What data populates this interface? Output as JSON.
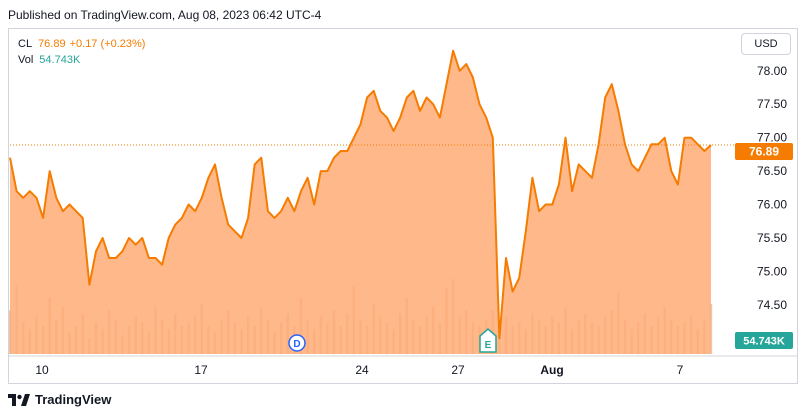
{
  "header": {
    "published": "Published on TradingView.com, Aug 08, 2023 06:42 UTC-4"
  },
  "legend": {
    "symbol": "CL",
    "price": "76.89",
    "change": "+0.17 (+0.23%)",
    "vol_label": "Vol",
    "vol_value": "54.743K"
  },
  "currency": "USD",
  "price_tag": "76.89",
  "volume_tag": "54.743K",
  "footer": {
    "brand": "TradingView"
  },
  "colors": {
    "line": "#f57c00",
    "fill": "#ffab76",
    "volume": "#e8c8b4",
    "teal": "#26a69a",
    "dividend": "#2962ff"
  },
  "chart_data": {
    "type": "area",
    "ylim": [
      73.75,
      78.55
    ],
    "y_ticks": [
      74.5,
      75.0,
      75.5,
      76.0,
      76.5,
      77.0,
      77.5,
      78.0
    ],
    "y_tick_labels": [
      "74.50",
      "75.00",
      "75.50",
      "76.00",
      "76.50",
      "77.00",
      "77.50",
      "78.00"
    ],
    "x_tick_labels": [
      {
        "label": "10",
        "bold": false
      },
      {
        "label": "17",
        "bold": false
      },
      {
        "label": "24",
        "bold": false
      },
      {
        "label": "27",
        "bold": false
      },
      {
        "label": "Aug",
        "bold": true
      },
      {
        "label": "7",
        "bold": false
      }
    ],
    "last_price": 76.89,
    "events": [
      {
        "label": "D",
        "type": "dividend"
      },
      {
        "label": "E",
        "type": "earnings"
      }
    ],
    "series": [
      {
        "values": [
          76.7,
          76.2,
          76.1,
          76.2,
          76.1,
          75.8,
          76.5,
          76.1,
          75.9,
          76.0,
          75.9,
          75.8,
          74.8,
          75.3,
          75.5,
          75.2,
          75.2,
          75.3,
          75.5,
          75.4,
          75.5,
          75.2,
          75.2,
          75.1,
          75.5,
          75.7,
          75.8,
          76.0,
          75.9,
          76.1,
          76.4,
          76.6,
          76.1,
          75.7,
          75.6,
          75.5,
          75.8,
          76.6,
          76.7,
          75.9,
          75.8,
          75.9,
          76.1,
          75.9,
          76.2,
          76.4,
          76.0,
          76.5,
          76.5,
          76.7,
          76.8,
          76.8,
          77.0,
          77.2,
          77.6,
          77.7,
          77.4,
          77.3,
          77.1,
          77.3,
          77.6,
          77.7,
          77.4,
          77.6,
          77.5,
          77.3,
          77.8,
          78.3,
          78.0,
          78.1,
          77.9,
          77.5,
          77.3,
          77.0,
          74.0,
          75.2,
          74.7,
          74.9,
          75.6,
          76.4,
          75.9,
          76.0,
          76.0,
          76.3,
          77.0,
          76.2,
          76.6,
          76.5,
          76.4,
          76.9,
          77.6,
          77.8,
          77.4,
          76.9,
          76.6,
          76.5,
          76.7,
          76.9,
          76.9,
          77.0,
          76.5,
          76.3,
          77.0,
          77.0,
          76.9,
          76.8,
          76.89
        ],
        "volume": [
          14,
          22,
          10,
          8,
          12,
          9,
          18,
          11,
          15,
          7,
          9,
          13,
          5,
          10,
          8,
          14,
          11,
          6,
          9,
          12,
          10,
          7,
          15,
          11,
          8,
          13,
          9,
          10,
          12,
          16,
          9,
          7,
          11,
          14,
          10,
          8,
          12,
          9,
          15,
          11,
          7,
          10,
          13,
          9,
          18,
          11,
          8,
          12,
          10,
          14,
          9,
          13,
          22,
          11,
          9,
          16,
          12,
          10,
          8,
          13,
          18,
          11,
          9,
          12,
          15,
          10,
          21,
          24,
          12,
          14,
          10,
          9,
          11,
          14,
          7,
          12,
          9,
          10,
          8,
          13,
          11,
          9,
          12,
          10,
          15,
          8,
          11,
          13,
          10,
          9,
          12,
          14,
          20,
          11,
          8,
          10,
          13,
          9,
          12,
          15,
          11,
          9,
          10,
          12,
          8,
          11,
          16
        ]
      }
    ]
  }
}
